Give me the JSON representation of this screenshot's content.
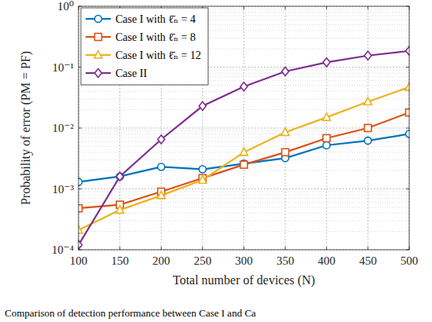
{
  "chart_data": {
    "type": "line",
    "x_label": "Total number of devices (N)",
    "y_label": "Probability of error (PM = PF)",
    "caption": "Comparison of detection performance between Case I and Ca",
    "x": [
      100,
      150,
      200,
      250,
      300,
      350,
      400,
      450,
      500
    ],
    "xlim": [
      100,
      500
    ],
    "xticks": [
      100,
      150,
      200,
      250,
      300,
      350,
      400,
      450,
      500
    ],
    "ylim": [
      0.0001,
      1
    ],
    "yticks": [
      {
        "value": 0.0001,
        "label": "10⁻⁴"
      },
      {
        "value": 0.001,
        "label": "10⁻³"
      },
      {
        "value": 0.01,
        "label": "10⁻²"
      },
      {
        "value": 0.1,
        "label": "10⁻¹"
      },
      {
        "value": 1,
        "label": "10⁰"
      }
    ],
    "log": "y",
    "grid": true,
    "legend": "upper-left",
    "series": [
      {
        "name": "Case I with ℓ̄ₙ = 4",
        "color": "#0072BD",
        "marker": "circle",
        "line_style": "solid",
        "values": [
          0.0013,
          0.0016,
          0.0023,
          0.0021,
          0.0026,
          0.0032,
          0.0052,
          0.0062,
          0.008
        ]
      },
      {
        "name": "Case I with ℓ̄ₙ = 8",
        "color": "#D95319",
        "marker": "square",
        "line_style": "solid",
        "values": [
          0.00048,
          0.00055,
          0.0009,
          0.0015,
          0.0025,
          0.004,
          0.0068,
          0.01,
          0.018
        ]
      },
      {
        "name": "Case I with ℓ̄ₙ = 12",
        "color": "#EDB120",
        "marker": "triangle",
        "line_style": "solid",
        "values": [
          0.00021,
          0.00045,
          0.00078,
          0.0014,
          0.004,
          0.0085,
          0.015,
          0.027,
          0.047
        ]
      },
      {
        "name": "Case II",
        "color": "#7E2F8E",
        "marker": "diamond",
        "line_style": "solid",
        "values": [
          0.00012,
          0.0016,
          0.0065,
          0.023,
          0.048,
          0.085,
          0.12,
          0.155,
          0.185
        ]
      }
    ]
  }
}
